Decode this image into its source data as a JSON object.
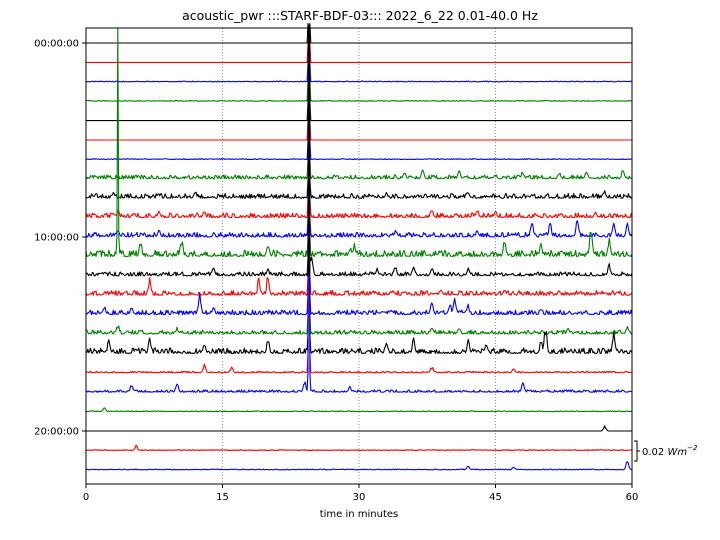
{
  "chart_data": {
    "type": "line",
    "title": "acoustic_pwr :::STARF-BDF-03::: 2022_6_22  0.01-40.0 Hz",
    "xlabel": "time in minutes",
    "ylabel": "",
    "xlim": [
      0,
      60
    ],
    "x_ticks": [
      "0",
      "15",
      "30",
      "45",
      "60"
    ],
    "grid": "vertical dotted lines at 15, 30, 45 minutes",
    "row_labels": [
      {
        "row": 0,
        "label": "00:00:00"
      },
      {
        "row": 10,
        "label": "10:00:00"
      },
      {
        "row": 20,
        "label": "20:00:00"
      }
    ],
    "scale_bar": {
      "value": "0.02",
      "unit": "Wm",
      "exponent": "−2"
    },
    "color_cycle": [
      "#000000",
      "#ff0000",
      "#0000ff",
      "#008000"
    ],
    "rows": [
      {
        "hour": 0,
        "color": "#000000",
        "level": 0.0,
        "spikes": [
          [
            24.5,
            1.0
          ]
        ]
      },
      {
        "hour": 1,
        "color": "#ff0000",
        "level": 0.0,
        "spikes": [
          [
            24.5,
            1.0
          ]
        ]
      },
      {
        "hour": 2,
        "color": "#0000ff",
        "level": 0.01,
        "spikes": [
          [
            24.5,
            1.0
          ]
        ]
      },
      {
        "hour": 3,
        "color": "#008000",
        "level": 0.01,
        "spikes": [
          [
            24.5,
            1.0
          ]
        ]
      },
      {
        "hour": 4,
        "color": "#000000",
        "level": 0.0,
        "spikes": [
          [
            24.5,
            1.0
          ]
        ]
      },
      {
        "hour": 5,
        "color": "#ff0000",
        "level": 0.0,
        "spikes": [
          [
            24.5,
            1.0
          ]
        ]
      },
      {
        "hour": 6,
        "color": "#0000ff",
        "level": 0.01,
        "spikes": [
          [
            24.5,
            1.0
          ]
        ]
      },
      {
        "hour": 7,
        "color": "#008000",
        "level": 0.05,
        "spikes": [
          [
            24.5,
            1.0
          ],
          [
            35,
            0.22
          ],
          [
            37,
            0.28
          ],
          [
            41,
            0.3
          ],
          [
            48,
            0.24
          ],
          [
            52,
            0.2
          ],
          [
            55,
            0.3
          ],
          [
            59,
            0.32
          ]
        ]
      },
      {
        "hour": 8,
        "color": "#000000",
        "level": 0.06,
        "spikes": [
          [
            3,
            0.2
          ],
          [
            8,
            0.15
          ],
          [
            12,
            0.22
          ],
          [
            24.5,
            1.0
          ],
          [
            33,
            0.18
          ],
          [
            42,
            0.2
          ],
          [
            49,
            0.15
          ],
          [
            57,
            0.22
          ]
        ]
      },
      {
        "hour": 9,
        "color": "#ff0000",
        "level": 0.06,
        "spikes": [
          [
            3.5,
            0.25
          ],
          [
            8,
            0.2
          ],
          [
            13,
            0.2
          ],
          [
            24.5,
            1.0
          ],
          [
            38,
            0.3
          ],
          [
            43,
            0.25
          ],
          [
            45,
            0.2
          ],
          [
            56,
            0.2
          ]
        ]
      },
      {
        "hour": 10,
        "color": "#0000ff",
        "level": 0.06,
        "spikes": [
          [
            3.5,
            0.3
          ],
          [
            8,
            0.25
          ],
          [
            24.5,
            1.0
          ],
          [
            34,
            0.2
          ],
          [
            43,
            0.25
          ],
          [
            49,
            0.6
          ],
          [
            51,
            0.5
          ],
          [
            54,
            0.55
          ],
          [
            58,
            0.45
          ],
          [
            59.5,
            0.4
          ]
        ]
      },
      {
        "hour": 11,
        "color": "#008000",
        "level": 0.08,
        "spikes": [
          [
            3.5,
            1.0
          ],
          [
            6,
            0.45
          ],
          [
            10.5,
            0.55
          ],
          [
            20,
            0.4
          ],
          [
            24.5,
            1.0
          ],
          [
            29,
            0.3
          ],
          [
            29.5,
            0.4
          ],
          [
            46,
            0.5
          ],
          [
            50,
            0.4
          ],
          [
            55.5,
            0.9
          ],
          [
            57.5,
            0.55
          ]
        ]
      },
      {
        "hour": 12,
        "color": "#000000",
        "level": 0.05,
        "spikes": [
          [
            14,
            0.3
          ],
          [
            20,
            0.2
          ],
          [
            24.5,
            1.0
          ],
          [
            24.8,
            0.6
          ],
          [
            32,
            0.25
          ],
          [
            34,
            0.35
          ],
          [
            36,
            0.4
          ],
          [
            38,
            0.3
          ],
          [
            42,
            0.3
          ],
          [
            57.5,
            0.35
          ]
        ]
      },
      {
        "hour": 13,
        "color": "#ff0000",
        "level": 0.06,
        "spikes": [
          [
            7,
            0.55
          ],
          [
            19,
            0.55
          ],
          [
            20,
            0.7
          ],
          [
            24.5,
            1.0
          ],
          [
            39,
            0.25
          ],
          [
            46,
            0.2
          ],
          [
            52,
            0.15
          ]
        ]
      },
      {
        "hour": 14,
        "color": "#0000ff",
        "level": 0.06,
        "spikes": [
          [
            2,
            0.3
          ],
          [
            5,
            0.25
          ],
          [
            12.5,
            0.7
          ],
          [
            14,
            0.25
          ],
          [
            24.5,
            1.0
          ],
          [
            38,
            0.55
          ],
          [
            40,
            0.35
          ],
          [
            40.5,
            0.5
          ],
          [
            42,
            0.3
          ],
          [
            50,
            0.2
          ]
        ]
      },
      {
        "hour": 15,
        "color": "#008000",
        "level": 0.05,
        "spikes": [
          [
            3.5,
            0.3
          ],
          [
            10,
            0.2
          ],
          [
            24.5,
            1.0
          ],
          [
            38,
            0.25
          ],
          [
            41,
            0.2
          ],
          [
            53,
            0.2
          ],
          [
            59.5,
            0.3
          ]
        ]
      },
      {
        "hour": 16,
        "color": "#000000",
        "level": 0.07,
        "spikes": [
          [
            2.5,
            0.4
          ],
          [
            7,
            0.5
          ],
          [
            13,
            0.35
          ],
          [
            20,
            0.45
          ],
          [
            24.5,
            1.0
          ],
          [
            33,
            0.4
          ],
          [
            36,
            0.45
          ],
          [
            42,
            0.4
          ],
          [
            44,
            0.35
          ],
          [
            50,
            0.4
          ],
          [
            50.5,
            0.8
          ],
          [
            58,
            0.7
          ]
        ]
      },
      {
        "hour": 17,
        "color": "#ff0000",
        "level": 0.02,
        "spikes": [
          [
            13,
            0.25
          ],
          [
            16,
            0.2
          ],
          [
            24.5,
            1.0
          ],
          [
            38,
            0.2
          ],
          [
            47,
            0.15
          ]
        ]
      },
      {
        "hour": 18,
        "color": "#0000ff",
        "level": 0.03,
        "spikes": [
          [
            5,
            0.25
          ],
          [
            10,
            0.3
          ],
          [
            24,
            0.4
          ],
          [
            24.5,
            1.0
          ],
          [
            29,
            0.2
          ],
          [
            48,
            0.3
          ]
        ]
      },
      {
        "hour": 19,
        "color": "#008000",
        "level": 0.01,
        "spikes": [
          [
            2,
            0.15
          ]
        ]
      },
      {
        "hour": 20,
        "color": "#000000",
        "level": 0.0,
        "spikes": [
          [
            57,
            0.15
          ]
        ]
      },
      {
        "hour": 21,
        "color": "#ff0000",
        "level": 0.01,
        "spikes": [
          [
            5.5,
            0.15
          ]
        ]
      },
      {
        "hour": 22,
        "color": "#0000ff",
        "level": 0.01,
        "spikes": [
          [
            42,
            0.12
          ],
          [
            47,
            0.1
          ],
          [
            59.5,
            0.3
          ]
        ]
      }
    ]
  }
}
